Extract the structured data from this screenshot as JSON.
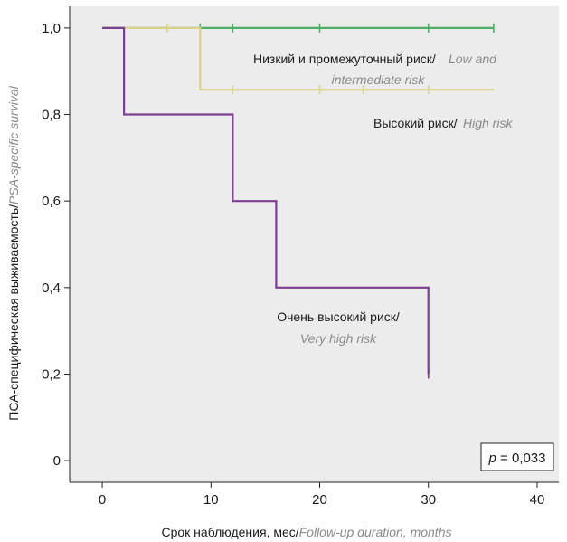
{
  "chart_data": {
    "type": "line",
    "subtype": "kaplan-meier",
    "title": "",
    "xlabel_ru": "Срок наблюдения, мес/",
    "xlabel_en": "Follow-up duration, months",
    "ylabel_ru": "ПСА-специфическая выживаемость/",
    "ylabel_en": "PSA-specific survival",
    "xlim": [
      -3,
      42
    ],
    "ylim": [
      -0.05,
      1.05
    ],
    "x_ticks": [
      0,
      10,
      20,
      30,
      40
    ],
    "y_ticks": [
      0,
      0.2,
      0.4,
      0.6,
      0.8,
      1.0
    ],
    "x_tick_labels": [
      "0",
      "10",
      "20",
      "30",
      "40"
    ],
    "y_tick_labels": [
      "0",
      "0,2",
      "0,4",
      "0,6",
      "0,8",
      "1,0"
    ],
    "grid": false,
    "background_color": "#ececec",
    "series": [
      {
        "id": "low-intermediate",
        "label_ru": "Низкий и промежуточный риск/",
        "label_en_line1": "Low and",
        "label_en_line2": "intermediate risk",
        "color": "#4caf63",
        "x": [
          0,
          36
        ],
        "y": [
          1.0,
          1.0
        ],
        "censored_x": [
          9,
          12,
          20,
          30,
          36
        ],
        "censored_y": [
          1.0,
          1.0,
          1.0,
          1.0,
          1.0
        ]
      },
      {
        "id": "high",
        "label_ru": "Высокий риск/",
        "label_en": "High risk",
        "color": "#d9d48a",
        "x": [
          0,
          9,
          9,
          36
        ],
        "y": [
          1.0,
          1.0,
          0.857,
          0.857
        ],
        "censored_x": [
          6,
          12,
          20,
          24,
          30
        ],
        "censored_y": [
          1.0,
          0.857,
          0.857,
          0.857,
          0.857
        ]
      },
      {
        "id": "very-high",
        "label_ru": "Очень высокий риск/",
        "label_en": "Very high risk",
        "color": "#7b3f8f",
        "x": [
          0,
          2,
          2,
          12,
          12,
          16,
          16,
          30,
          30
        ],
        "y": [
          1.0,
          1.0,
          0.8,
          0.8,
          0.6,
          0.6,
          0.4,
          0.4,
          0.2
        ],
        "censored_x": [
          30
        ],
        "censored_y": [
          0.2
        ]
      }
    ],
    "p_value_label": "p",
    "p_value_text": " = 0,033"
  }
}
